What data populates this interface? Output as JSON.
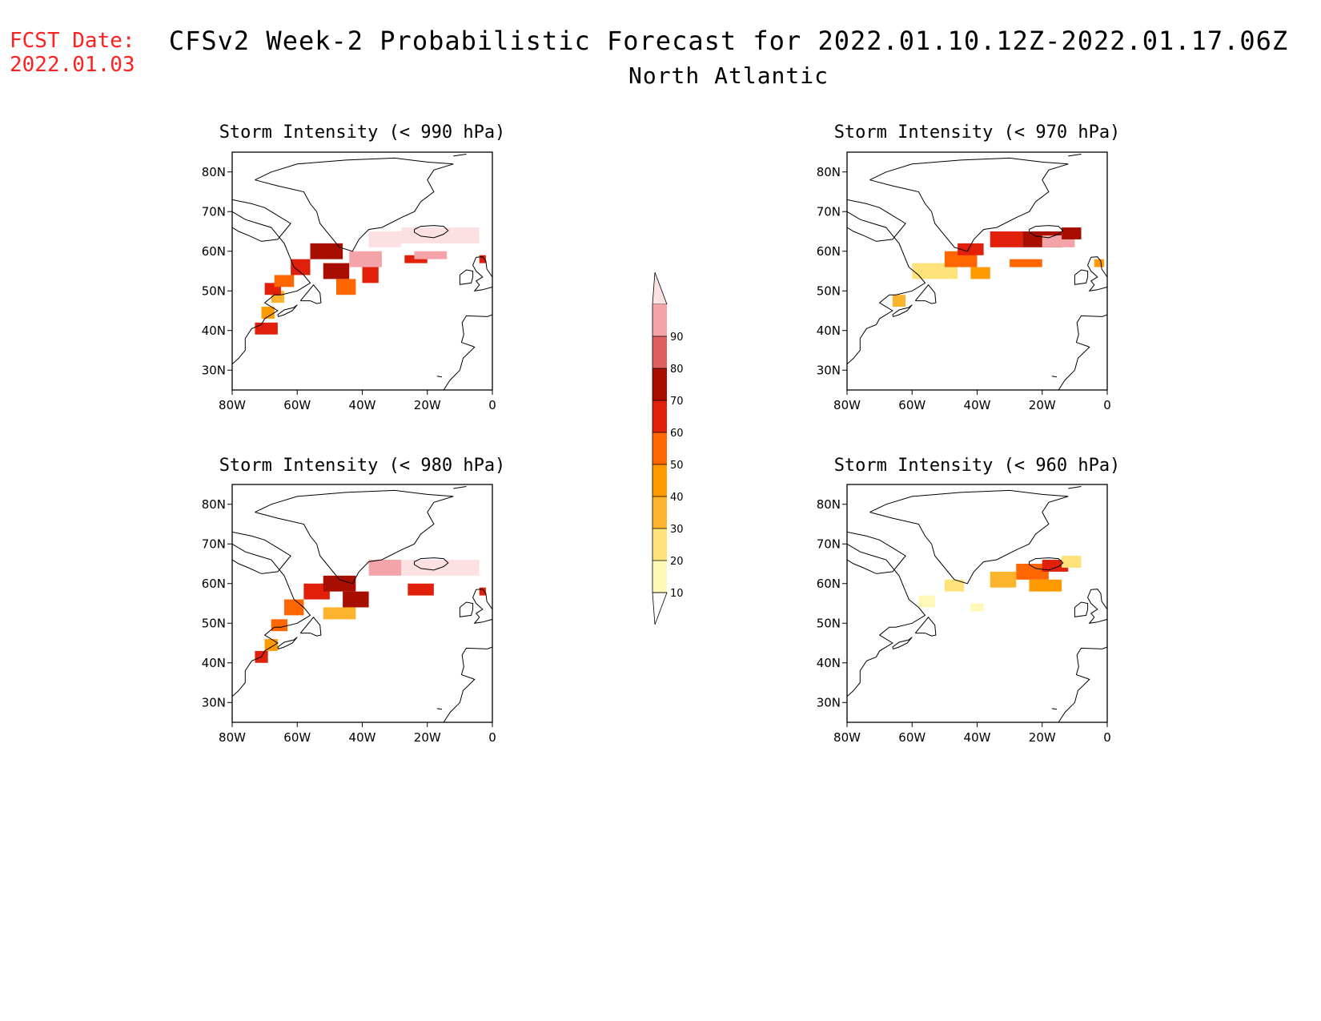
{
  "forecast_date": {
    "label": "FCST Date:",
    "value": "2022.01.03"
  },
  "title": {
    "line1": "CFSv2 Week-2 Probabilistic Forecast for 2022.01.10.12Z-2022.01.17.06Z",
    "line2": "North Atlantic"
  },
  "colors": {
    "c10": "#fff8b8",
    "c20": "#fde37a",
    "c30": "#fcb32e",
    "c40": "#ff9a00",
    "c50": "#ff6600",
    "c60": "#e0200a",
    "c70": "#a80e00",
    "c80": "#e06060",
    "c90": "#f4a4a8",
    "c100": "#fde0e2",
    "coast": "#000000"
  },
  "colorbar": {
    "levels": [
      10,
      20,
      30,
      40,
      50,
      60,
      70,
      80,
      90
    ],
    "labels": [
      "10",
      "20",
      "30",
      "40",
      "50",
      "60",
      "70",
      "80",
      "90"
    ]
  },
  "axes": {
    "lon_range": [
      -80,
      0
    ],
    "lat_range": [
      25,
      85
    ],
    "lon_ticks": [
      -80,
      -60,
      -40,
      -20,
      0
    ],
    "lon_labels": [
      "80W",
      "60W",
      "40W",
      "20W",
      "0"
    ],
    "lat_ticks": [
      80,
      70,
      60,
      50,
      40,
      30
    ],
    "lat_labels": [
      "80N",
      "70N",
      "60N",
      "50N",
      "40N",
      "30N"
    ]
  },
  "panels": [
    {
      "id": "p990",
      "title": "Storm Intensity (< 990 hPa)",
      "cells": [
        {
          "lon": -73,
          "lat": 39,
          "w": 7,
          "h": 3,
          "v": 60
        },
        {
          "lon": -71,
          "lat": 43,
          "w": 4,
          "h": 3,
          "v": 40
        },
        {
          "lon": -68,
          "lat": 47,
          "w": 4,
          "h": 3,
          "v": 30
        },
        {
          "lon": -70,
          "lat": 49,
          "w": 5,
          "h": 3,
          "v": 60
        },
        {
          "lon": -67,
          "lat": 51,
          "w": 6,
          "h": 3,
          "v": 50
        },
        {
          "lon": -62,
          "lat": 54,
          "w": 6,
          "h": 4,
          "v": 60
        },
        {
          "lon": -56,
          "lat": 58,
          "w": 10,
          "h": 4,
          "v": 70
        },
        {
          "lon": -52,
          "lat": 53,
          "w": 8,
          "h": 4,
          "v": 70
        },
        {
          "lon": -48,
          "lat": 49,
          "w": 6,
          "h": 4,
          "v": 50
        },
        {
          "lon": -44,
          "lat": 56,
          "w": 10,
          "h": 4,
          "v": 90
        },
        {
          "lon": -40,
          "lat": 52,
          "w": 5,
          "h": 4,
          "v": 60
        },
        {
          "lon": -38,
          "lat": 61,
          "w": 10,
          "h": 4,
          "v": 100
        },
        {
          "lon": -28,
          "lat": 62,
          "w": 12,
          "h": 4,
          "v": 100
        },
        {
          "lon": -18,
          "lat": 62,
          "w": 14,
          "h": 4,
          "v": 100
        },
        {
          "lon": -27,
          "lat": 57,
          "w": 7,
          "h": 2,
          "v": 60
        },
        {
          "lon": -24,
          "lat": 58,
          "w": 10,
          "h": 2,
          "v": 90
        },
        {
          "lon": -4,
          "lat": 57,
          "w": 2,
          "h": 2,
          "v": 60
        }
      ]
    },
    {
      "id": "p970",
      "title": "Storm Intensity (< 970 hPa)",
      "cells": [
        {
          "lon": -60,
          "lat": 53,
          "w": 14,
          "h": 4,
          "v": 20
        },
        {
          "lon": -66,
          "lat": 46,
          "w": 4,
          "h": 3,
          "v": 30
        },
        {
          "lon": -50,
          "lat": 56,
          "w": 10,
          "h": 4,
          "v": 50
        },
        {
          "lon": -46,
          "lat": 59,
          "w": 8,
          "h": 3,
          "v": 60
        },
        {
          "lon": -42,
          "lat": 53,
          "w": 6,
          "h": 3,
          "v": 40
        },
        {
          "lon": -36,
          "lat": 61,
          "w": 10,
          "h": 4,
          "v": 60
        },
        {
          "lon": -26,
          "lat": 61,
          "w": 12,
          "h": 4,
          "v": 70
        },
        {
          "lon": -20,
          "lat": 61,
          "w": 10,
          "h": 3,
          "v": 90
        },
        {
          "lon": -14,
          "lat": 63,
          "w": 6,
          "h": 3,
          "v": 70
        },
        {
          "lon": -30,
          "lat": 56,
          "w": 10,
          "h": 2,
          "v": 50
        },
        {
          "lon": -4,
          "lat": 56,
          "w": 3,
          "h": 2,
          "v": 40
        }
      ]
    },
    {
      "id": "p980",
      "title": "Storm Intensity (< 980 hPa)",
      "cells": [
        {
          "lon": -73,
          "lat": 40,
          "w": 4,
          "h": 3,
          "v": 60
        },
        {
          "lon": -70,
          "lat": 43,
          "w": 4,
          "h": 3,
          "v": 40
        },
        {
          "lon": -68,
          "lat": 48,
          "w": 5,
          "h": 3,
          "v": 50
        },
        {
          "lon": -64,
          "lat": 52,
          "w": 6,
          "h": 4,
          "v": 50
        },
        {
          "lon": -58,
          "lat": 56,
          "w": 8,
          "h": 4,
          "v": 60
        },
        {
          "lon": -52,
          "lat": 58,
          "w": 10,
          "h": 4,
          "v": 70
        },
        {
          "lon": -46,
          "lat": 54,
          "w": 8,
          "h": 4,
          "v": 70
        },
        {
          "lon": -52,
          "lat": 51,
          "w": 10,
          "h": 3,
          "v": 30
        },
        {
          "lon": -38,
          "lat": 62,
          "w": 10,
          "h": 4,
          "v": 90
        },
        {
          "lon": -28,
          "lat": 62,
          "w": 12,
          "h": 4,
          "v": 100
        },
        {
          "lon": -16,
          "lat": 62,
          "w": 12,
          "h": 4,
          "v": 100
        },
        {
          "lon": -26,
          "lat": 57,
          "w": 8,
          "h": 3,
          "v": 60
        },
        {
          "lon": -4,
          "lat": 57,
          "w": 2,
          "h": 2,
          "v": 60
        }
      ]
    },
    {
      "id": "p960",
      "title": "Storm Intensity (< 960 hPa)",
      "cells": [
        {
          "lon": -58,
          "lat": 54,
          "w": 5,
          "h": 3,
          "v": 10
        },
        {
          "lon": -50,
          "lat": 58,
          "w": 6,
          "h": 3,
          "v": 20
        },
        {
          "lon": -42,
          "lat": 53,
          "w": 4,
          "h": 2,
          "v": 10
        },
        {
          "lon": -36,
          "lat": 59,
          "w": 8,
          "h": 4,
          "v": 30
        },
        {
          "lon": -28,
          "lat": 61,
          "w": 10,
          "h": 4,
          "v": 50
        },
        {
          "lon": -20,
          "lat": 63,
          "w": 8,
          "h": 3,
          "v": 60
        },
        {
          "lon": -14,
          "lat": 64,
          "w": 6,
          "h": 3,
          "v": 20
        },
        {
          "lon": -24,
          "lat": 58,
          "w": 10,
          "h": 3,
          "v": 40
        }
      ]
    }
  ]
}
